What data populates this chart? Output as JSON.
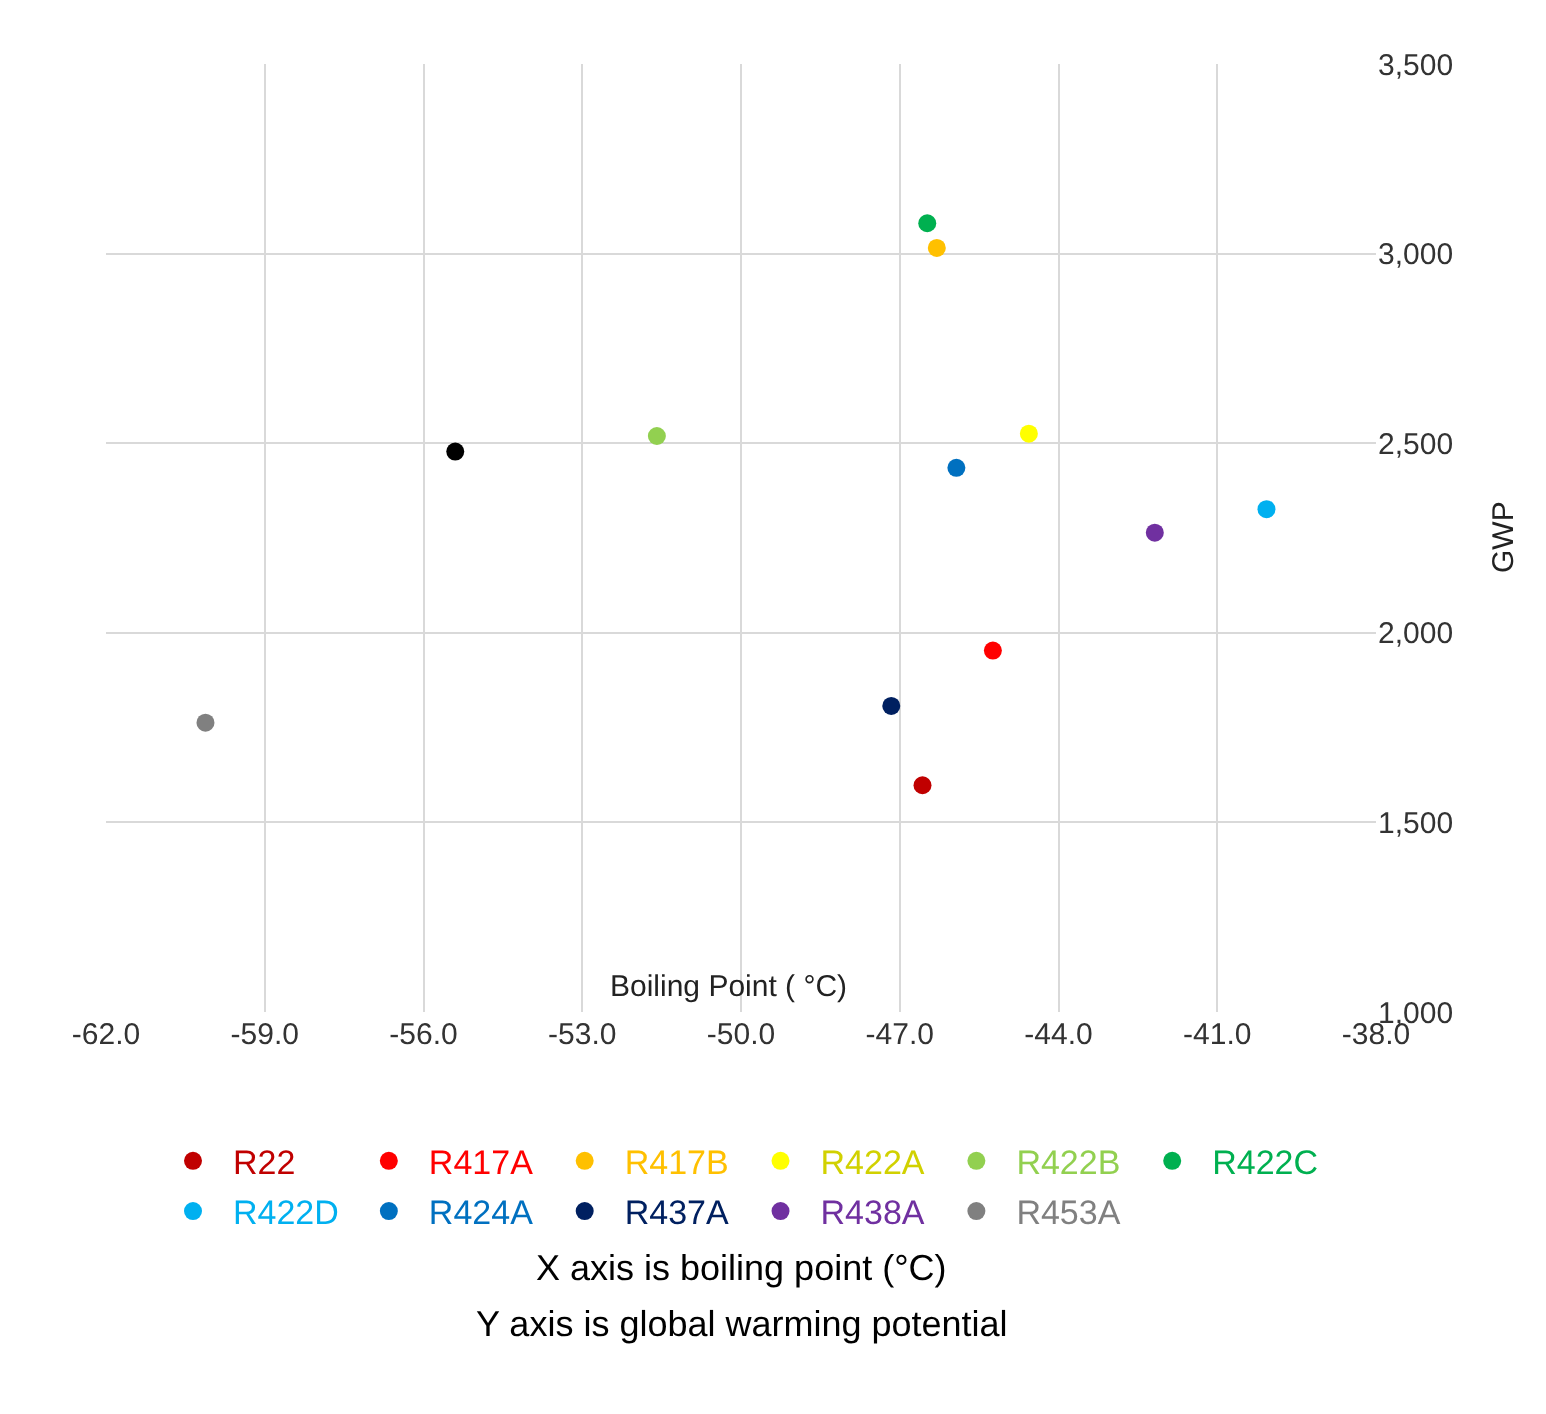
{
  "chart_data": {
    "type": "scatter",
    "xlabel": "Boiling Point ( °C)",
    "ylabel": "GWP",
    "xlim": [
      -62,
      -38
    ],
    "xticks": [
      {
        "value": -62,
        "label": "-62.0"
      },
      {
        "value": -59,
        "label": "-59.0"
      },
      {
        "value": -56,
        "label": "-56.0"
      },
      {
        "value": -53,
        "label": "-53.0"
      },
      {
        "value": -50,
        "label": "-50.0"
      },
      {
        "value": -47,
        "label": "-47.0"
      },
      {
        "value": -44,
        "label": "-44.0"
      },
      {
        "value": -41,
        "label": "-41.0"
      },
      {
        "value": -38,
        "label": "-38.0"
      }
    ],
    "ylim": [
      1000,
      3500
    ],
    "yticks": [
      {
        "value": 1000,
        "label": "1,000"
      },
      {
        "value": 1500,
        "label": "1,500"
      },
      {
        "value": 2000,
        "label": "2,000"
      },
      {
        "value": 2500,
        "label": "2,500"
      },
      {
        "value": 3000,
        "label": "3,000"
      },
      {
        "value": 3500,
        "label": "3,500"
      }
    ],
    "grid": true,
    "legend": "bottom",
    "marker": "circle",
    "series": [
      {
        "name": "R22",
        "color": "#c00000",
        "x": [
          -46.57
        ],
        "values": [
          1598
        ]
      },
      {
        "name": "R417A",
        "color": "#ff0000",
        "x": [
          -45.24
        ],
        "values": [
          1953
        ]
      },
      {
        "name": "R417B",
        "color": "#ffc000",
        "x": [
          -46.3
        ],
        "values": [
          3015
        ]
      },
      {
        "name": "R422A",
        "color": "#ffff00",
        "x": [
          -44.56
        ],
        "values": [
          2525
        ]
      },
      {
        "name": "R422B",
        "color": "#92d050",
        "x": [
          -51.59
        ],
        "values": [
          2519
        ]
      },
      {
        "name": "R422C",
        "color": "#00b050",
        "x": [
          -46.48
        ],
        "values": [
          3080
        ]
      },
      {
        "name": "R422D",
        "color": "#00b0f0",
        "x": [
          -40.07
        ],
        "values": [
          2326
        ]
      },
      {
        "name": "R424A",
        "color": "#0070c0",
        "x": [
          -45.93
        ],
        "values": [
          2435
        ]
      },
      {
        "name": "R437A",
        "color": "#002060",
        "x": [
          -47.16
        ],
        "values": [
          1807
        ]
      },
      {
        "name": "R438A",
        "color": "#7030a0",
        "x": [
          -42.18
        ],
        "values": [
          2264
        ]
      },
      {
        "name": "R453A",
        "color": "#808080",
        "x": [
          -60.12
        ],
        "values": [
          1763
        ]
      },
      {
        "color": "#000000",
        "x": [
          -55.4
        ],
        "values": [
          2478
        ]
      }
    ],
    "annotations": [
      "X axis is boiling point (°C)",
      "Y axis is global warming potential"
    ]
  }
}
